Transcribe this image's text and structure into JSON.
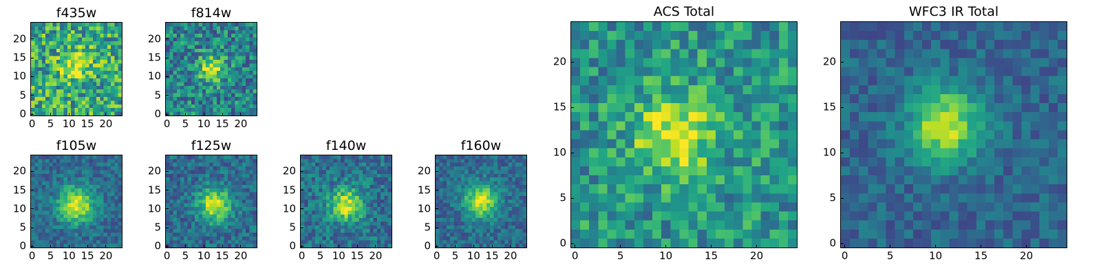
{
  "figure": {
    "panels": [
      {
        "id": "f435w",
        "title": "f435w",
        "size": "small",
        "x_ticks": [
          "0",
          "5",
          "10",
          "15",
          "20"
        ],
        "y_ticks": [
          "0",
          "5",
          "10",
          "15",
          "20"
        ],
        "source": {
          "cx": 12,
          "cy": 13,
          "sigma": 3.0,
          "amp": 0.35,
          "noise": 0.3,
          "base": 0.6,
          "seed": 11
        }
      },
      {
        "id": "f814w",
        "title": "f814w",
        "size": "small",
        "x_ticks": [
          "0",
          "5",
          "10",
          "15",
          "20"
        ],
        "y_ticks": [
          "0",
          "5",
          "10",
          "15",
          "20"
        ],
        "source": {
          "cx": 12,
          "cy": 12,
          "sigma": 2.5,
          "amp": 0.5,
          "noise": 0.25,
          "base": 0.45,
          "seed": 23
        }
      },
      {
        "id": "f105w",
        "title": "f105w",
        "size": "small",
        "x_ticks": [
          "0",
          "5",
          "10",
          "15",
          "20"
        ],
        "y_ticks": [
          "0",
          "5",
          "10",
          "15",
          "20"
        ],
        "source": {
          "cx": 12,
          "cy": 11,
          "sigma": 3.5,
          "amp": 0.6,
          "noise": 0.14,
          "base": 0.35,
          "seed": 37
        }
      },
      {
        "id": "f125w",
        "title": "f125w",
        "size": "small",
        "x_ticks": [
          "0",
          "5",
          "10",
          "15",
          "20"
        ],
        "y_ticks": [
          "0",
          "5",
          "10",
          "15",
          "20"
        ],
        "source": {
          "cx": 13,
          "cy": 11,
          "sigma": 3.2,
          "amp": 0.6,
          "noise": 0.16,
          "base": 0.35,
          "seed": 41
        }
      },
      {
        "id": "f140w",
        "title": "f140w",
        "size": "small",
        "x_ticks": [
          "0",
          "5",
          "10",
          "15",
          "20"
        ],
        "y_ticks": [
          "0",
          "5",
          "10",
          "15",
          "20"
        ],
        "source": {
          "cx": 12,
          "cy": 11,
          "sigma": 3.2,
          "amp": 0.55,
          "noise": 0.18,
          "base": 0.38,
          "seed": 53
        }
      },
      {
        "id": "f160w",
        "title": "f160w",
        "size": "small",
        "x_ticks": [
          "0",
          "5",
          "10",
          "15",
          "20"
        ],
        "y_ticks": [
          "0",
          "5",
          "10",
          "15",
          "20"
        ],
        "source": {
          "cx": 12,
          "cy": 12,
          "sigma": 3.2,
          "amp": 0.6,
          "noise": 0.14,
          "base": 0.35,
          "seed": 67
        }
      },
      {
        "id": "acs-total",
        "title": "ACS Total",
        "size": "large",
        "x_ticks": [
          "0",
          "5",
          "10",
          "15",
          "20"
        ],
        "y_ticks": [
          "0",
          "5",
          "10",
          "15",
          "20"
        ],
        "source": {
          "cx": 11,
          "cy": 12,
          "sigma": 3.2,
          "amp": 0.45,
          "noise": 0.22,
          "base": 0.52,
          "seed": 79
        }
      },
      {
        "id": "wfc3-ir-total",
        "title": "WFC3 IR Total",
        "size": "large",
        "x_ticks": [
          "0",
          "5",
          "10",
          "15",
          "20"
        ],
        "y_ticks": [
          "0",
          "5",
          "10",
          "15",
          "20"
        ],
        "source": {
          "cx": 11,
          "cy": 13,
          "sigma": 2.8,
          "amp": 0.6,
          "noise": 0.12,
          "base": 0.33,
          "seed": 97
        }
      }
    ],
    "grid_size": 25,
    "colormap": "viridis"
  }
}
